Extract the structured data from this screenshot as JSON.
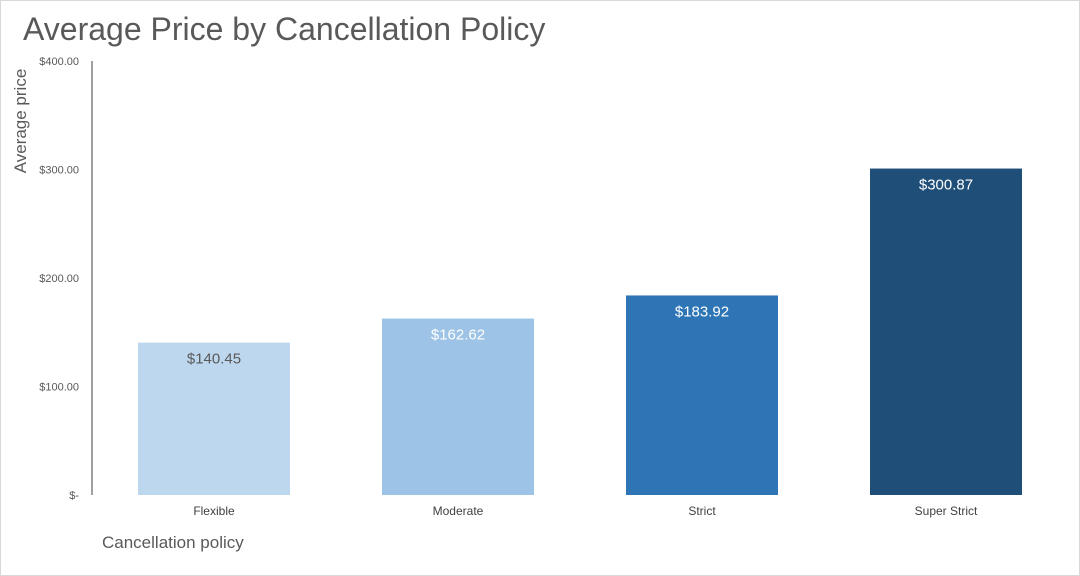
{
  "chart_data": {
    "type": "bar",
    "title": "Average Price by Cancellation Policy",
    "xlabel": "Cancellation policy",
    "ylabel": "Average price",
    "categories": [
      "Flexible",
      "Moderate",
      "Strict",
      "Super Strict"
    ],
    "values": [
      140.45,
      162.62,
      183.92,
      300.87
    ],
    "data_labels": [
      "$140.45",
      "$162.62",
      "$183.92",
      "$300.87"
    ],
    "bar_colors": [
      "#bdd7ee",
      "#9dc3e6",
      "#2e75b6",
      "#1f4e79"
    ],
    "data_label_colors": [
      "#595959",
      "#ffffff",
      "#ffffff",
      "#ffffff"
    ],
    "ylim": [
      0,
      400
    ],
    "yticks": [
      0,
      100,
      200,
      300,
      400
    ],
    "ytick_labels": [
      "$-",
      "$100.00",
      "$200.00",
      "$300.00",
      "$400.00"
    ],
    "grid": false,
    "legend": "none"
  }
}
